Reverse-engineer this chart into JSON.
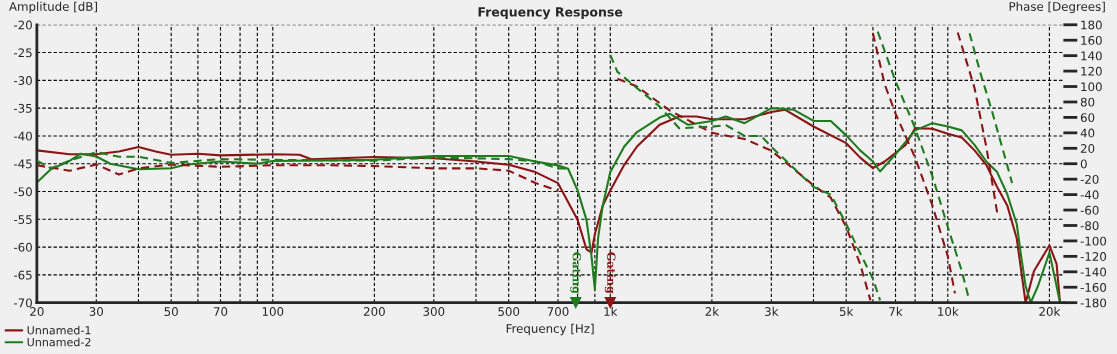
{
  "chart_data": {
    "type": "line",
    "title": "Frequency Response",
    "xlabel": "Frequency [Hz]",
    "ylabel": "Amplitude [dB]",
    "y2label": "Phase [Degrees]",
    "log": "x",
    "grid": true,
    "legend": "bottom left",
    "xlim": [
      20,
      22000
    ],
    "xticks": [
      20,
      30,
      {
        "value": 40,
        "label": null
      },
      50,
      {
        "value": 60,
        "label": null
      },
      70,
      {
        "value": 80,
        "label": null
      },
      {
        "value": 90,
        "label": null
      },
      100,
      200,
      300,
      {
        "value": 400,
        "label": null
      },
      500,
      {
        "value": 600,
        "label": null
      },
      700,
      {
        "value": 800,
        "label": null
      },
      {
        "value": 900,
        "label": null
      },
      {
        "value": 1000,
        "label": "1k"
      },
      {
        "value": 2000,
        "label": "2k"
      },
      {
        "value": 3000,
        "label": "3k"
      },
      {
        "value": 4000,
        "label": null
      },
      {
        "value": 5000,
        "label": "5k"
      },
      {
        "value": 6000,
        "label": null
      },
      {
        "value": 7000,
        "label": "7k"
      },
      {
        "value": 8000,
        "label": null
      },
      {
        "value": 9000,
        "label": null
      },
      {
        "value": 10000,
        "label": "10k"
      },
      {
        "value": 20000,
        "label": "20k"
      }
    ],
    "ylim": [
      -70,
      -20
    ],
    "yticks": [
      -70,
      -65,
      -60,
      -55,
      -50,
      -45,
      -40,
      -35,
      -30,
      -25,
      -20
    ],
    "y2lim": [
      -180,
      180
    ],
    "y2ticks": [
      -180,
      -160,
      -140,
      -120,
      -100,
      -80,
      -60,
      -40,
      -20,
      0,
      20,
      40,
      60,
      80,
      100,
      120,
      140,
      160,
      180
    ],
    "series": [
      {
        "name": "Unnamed-1",
        "color": "#8c1414",
        "line_style": "solid",
        "x": [
          20,
          25,
          30,
          35,
          40,
          45,
          50,
          60,
          70,
          100,
          120,
          130,
          200,
          300,
          400,
          500,
          600,
          700,
          800,
          850,
          880,
          900,
          950,
          1000,
          1100,
          1200,
          1400,
          1600,
          1800,
          2000,
          2500,
          3000,
          3300,
          4000,
          5000,
          5500,
          6000,
          6500,
          7500,
          8000,
          9000,
          10000,
          11000,
          12000,
          13000,
          14000,
          15000,
          16000,
          17000,
          18000,
          20000,
          21000,
          21500
        ],
        "values": [
          -42.6,
          -43.3,
          -43.3,
          -42.8,
          -42.0,
          -42.8,
          -43.4,
          -43.2,
          -43.5,
          -43.3,
          -43.4,
          -44.2,
          -43.8,
          -44.0,
          -44.6,
          -45.2,
          -46.5,
          -48.5,
          -55.1,
          -60.4,
          -61.0,
          -57.7,
          -52.5,
          -49.8,
          -45.2,
          -41.9,
          -38.0,
          -36.5,
          -36.5,
          -37.0,
          -37.0,
          -35.7,
          -35.3,
          -38.3,
          -41.3,
          -43.9,
          -45.8,
          -44.6,
          -41.6,
          -38.6,
          -38.7,
          -39.6,
          -40.3,
          -42.6,
          -45.2,
          -49.2,
          -52.5,
          -58.4,
          -70,
          -64.3,
          -59.7,
          -63,
          -70
        ]
      },
      {
        "name": "Unnamed-2",
        "color": "#1e7b1e",
        "line_style": "solid",
        "x": [
          20,
          22,
          25,
          27,
          30,
          33,
          40,
          50,
          55,
          70,
          90,
          100,
          200,
          300,
          400,
          500,
          600,
          700,
          750,
          800,
          850,
          880,
          900,
          920,
          950,
          1000,
          1100,
          1200,
          1400,
          1500,
          1700,
          2000,
          2200,
          2500,
          3000,
          3500,
          4000,
          4500,
          5000,
          5500,
          6000,
          6300,
          7000,
          8000,
          9000,
          10000,
          11000,
          12000,
          13000,
          14000,
          15000,
          16000,
          16500,
          17000,
          17600,
          18500,
          20000,
          21000,
          21500
        ],
        "values": [
          -48.4,
          -46.0,
          -44.5,
          -43.2,
          -43.7,
          -45.0,
          -46.0,
          -45.8,
          -45.2,
          -44.6,
          -45.0,
          -44.5,
          -44.3,
          -43.6,
          -43.6,
          -43.6,
          -44.6,
          -45.3,
          -45.9,
          -49.8,
          -55.1,
          -61.7,
          -67.6,
          -58.4,
          -52.5,
          -46.5,
          -41.9,
          -39.3,
          -36.7,
          -36.0,
          -38.0,
          -37.3,
          -36.5,
          -37.7,
          -35.0,
          -35.3,
          -37.3,
          -37.3,
          -39.9,
          -42.6,
          -44.6,
          -46.4,
          -43.3,
          -39.0,
          -37.7,
          -38.3,
          -39.0,
          -41.6,
          -44.6,
          -46.5,
          -50.5,
          -55.8,
          -61.7,
          -67.0,
          -70,
          -67.0,
          -61.0,
          -67.0,
          -70
        ]
      },
      {
        "color": "#8c1414",
        "axis": "y2",
        "line_style": "dashed",
        "x": [
          20,
          25,
          30,
          35,
          40,
          50,
          70,
          100,
          150,
          200,
          300,
          400,
          500,
          600,
          700
        ],
        "values": [
          -2,
          -9,
          -1,
          -14,
          -6,
          -1,
          -4,
          -2,
          -2,
          -3,
          -6,
          -6,
          -9,
          -25,
          -35
        ]
      },
      {
        "color": "#8c1414",
        "axis": "y2",
        "line_style": "dashed",
        "x": [
          1050,
          1200,
          1500,
          2000,
          2500,
          3000,
          4000,
          4500,
          5000,
          5500,
          5900
        ],
        "values": [
          110,
          100,
          69,
          40,
          32,
          17,
          -28,
          -44,
          -82,
          -130,
          -177
        ]
      },
      {
        "color": "#8c1414",
        "axis": "y2",
        "line_style": "dashed",
        "x": [
          6000,
          6500,
          7000,
          8000,
          9000,
          10000,
          10500
        ],
        "values": [
          169,
          103,
          65,
          8,
          -54,
          -120,
          -168
        ]
      },
      {
        "color": "#8c1414",
        "axis": "y2",
        "line_style": "dashed",
        "x": [
          10700,
          12000,
          13000,
          14000
        ],
        "values": [
          170,
          98,
          22,
          -63
        ]
      },
      {
        "color": "#1e7b1e",
        "axis": "y2",
        "line_style": "dashed",
        "x": [
          20,
          22,
          25,
          30,
          35,
          40,
          50,
          70,
          100,
          200,
          300,
          400,
          500,
          600,
          700,
          750
        ],
        "values": [
          4,
          -6,
          4,
          15,
          9,
          9,
          1,
          6,
          5,
          4,
          8,
          7,
          6,
          3,
          -6,
          -6
        ]
      },
      {
        "color": "#1e7b1e",
        "axis": "y2",
        "line_style": "dashed",
        "x": [
          1000,
          1050,
          1200,
          1400,
          1600,
          2000,
          2200,
          2500,
          2800,
          3000,
          3500,
          4000,
          4500,
          5000,
          5500,
          6000,
          6300
        ],
        "values": [
          141,
          119,
          98,
          74,
          46,
          48,
          50,
          36,
          36,
          22,
          -6,
          -30,
          -40,
          -78,
          -116,
          -149,
          -177
        ]
      },
      {
        "color": "#1e7b1e",
        "axis": "y2",
        "line_style": "dashed",
        "x": [
          6200,
          7000,
          8000,
          9000,
          10000,
          11000,
          11500
        ],
        "values": [
          171,
          107,
          46,
          -16,
          -82,
          -139,
          -172
        ]
      },
      {
        "color": "#1e7b1e",
        "axis": "y2",
        "line_style": "dashed",
        "x": [
          11600,
          12500,
          13500,
          15000,
          15500
        ],
        "values": [
          169,
          117,
          69,
          -2,
          -25
        ]
      }
    ],
    "annotations": [
      {
        "text": "Gating",
        "x": 1000,
        "y": -70
      },
      {
        "text": "Gating",
        "x": 790,
        "y": -70
      }
    ]
  }
}
